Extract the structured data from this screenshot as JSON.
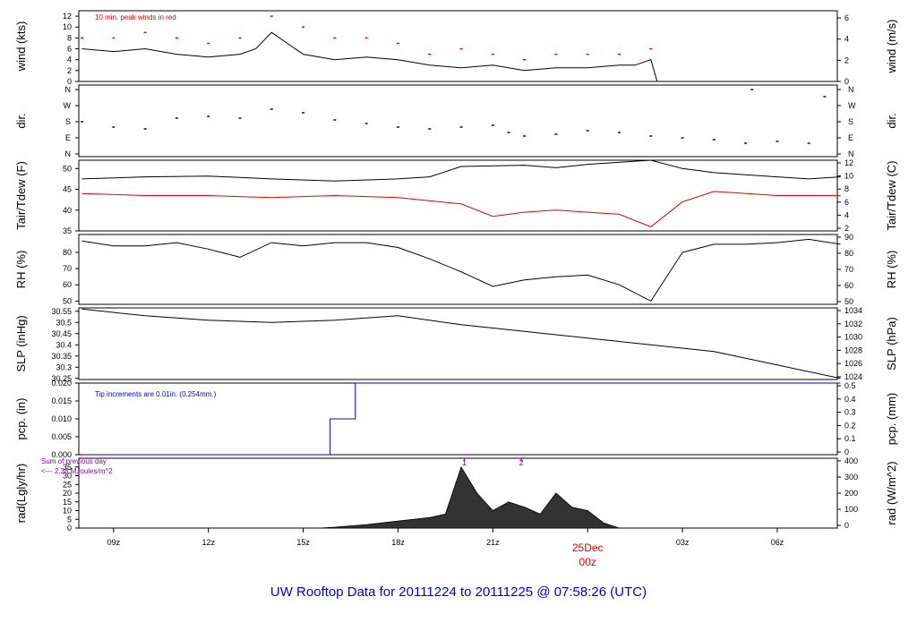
{
  "page_title": "UW Rooftop Data for 20111224  to  20111225 @ 07:58:26  (UTC)",
  "colors": {
    "text": "#000000",
    "peak": "#e00000",
    "tdew": "#e00000",
    "pcp": "#0000cc",
    "rad_note": "#8800aa",
    "title": "#0000cc",
    "date": "#e00000"
  },
  "time_axis": {
    "ticks": [
      "09z",
      "12z",
      "15z",
      "18z",
      "21z",
      "00z",
      "03z",
      "06z"
    ],
    "tick_hours": [
      9,
      12,
      15,
      18,
      21,
      24,
      27,
      30
    ],
    "range_hours": [
      7.9,
      31.9
    ],
    "date_label": "25Dec",
    "date_hour": 24
  },
  "chart_data": [
    {
      "type": "line",
      "name": "wind",
      "ylabel_left": "wind (kts)",
      "ylabel_right": "wind (m/s)",
      "ylim": [
        0,
        13
      ],
      "left_ticks": [
        0,
        2,
        4,
        6,
        8,
        10,
        12
      ],
      "right_ticks": [
        0,
        2,
        4,
        6
      ],
      "right_factor": 0.5144,
      "annotation": "10 min. peak winds in red",
      "series": [
        {
          "values": [
            [
              8,
              6
            ],
            [
              9,
              5.5
            ],
            [
              10,
              6
            ],
            [
              11,
              5
            ],
            [
              12,
              4.5
            ],
            [
              13,
              5
            ],
            [
              13.5,
              6
            ],
            [
              14,
              9
            ],
            [
              14.5,
              7
            ],
            [
              15,
              5
            ],
            [
              16,
              4
            ],
            [
              17,
              4.5
            ],
            [
              18,
              4
            ],
            [
              19,
              3
            ],
            [
              20,
              2.5
            ],
            [
              21,
              3
            ],
            [
              22,
              2
            ],
            [
              23,
              2.5
            ],
            [
              24,
              2.5
            ],
            [
              25,
              3
            ],
            [
              25.5,
              3
            ],
            [
              26,
              4
            ],
            [
              26.2,
              0
            ],
            [
              32,
              0
            ]
          ]
        },
        {
          "values": [
            [
              8,
              8
            ],
            [
              9,
              8
            ],
            [
              10,
              9
            ],
            [
              11,
              8
            ],
            [
              12,
              7
            ],
            [
              13,
              8
            ],
            [
              14,
              12
            ],
            [
              15,
              10
            ],
            [
              16,
              8
            ],
            [
              17,
              8
            ],
            [
              18,
              7
            ],
            [
              19,
              5
            ],
            [
              20,
              6
            ],
            [
              21,
              5
            ],
            [
              22,
              4
            ],
            [
              23,
              5
            ],
            [
              24,
              5
            ],
            [
              25,
              5
            ],
            [
              26,
              6
            ]
          ]
        }
      ]
    },
    {
      "type": "scatter",
      "name": "dir",
      "ylabel_left": "dir.",
      "ylabel_right": "dir.",
      "left_ticks": [
        "N",
        "E",
        "S",
        "W",
        "N"
      ],
      "right_ticks": [
        "N",
        "E",
        "S",
        "W",
        "N"
      ],
      "series": [
        {
          "values": [
            [
              8,
              180
            ],
            [
              9,
              150
            ],
            [
              10,
              140
            ],
            [
              11,
              200
            ],
            [
              12,
              210
            ],
            [
              13,
              200
            ],
            [
              14,
              250
            ],
            [
              15,
              230
            ],
            [
              16,
              190
            ],
            [
              17,
              170
            ],
            [
              18,
              150
            ],
            [
              19,
              140
            ],
            [
              20,
              150
            ],
            [
              21,
              160
            ],
            [
              21.5,
              120
            ],
            [
              22,
              100
            ],
            [
              23,
              110
            ],
            [
              24,
              130
            ],
            [
              25,
              120
            ],
            [
              26,
              100
            ],
            [
              27,
              90
            ],
            [
              28,
              80
            ],
            [
              29,
              60
            ],
            [
              29.2,
              370
            ],
            [
              30,
              70
            ],
            [
              31,
              60
            ],
            [
              31.5,
              320
            ]
          ]
        }
      ]
    },
    {
      "type": "line",
      "name": "temperature",
      "ylabel_left": "Tair/Tdew (F)",
      "ylabel_right": "Tair/Tdew (C)",
      "ylim": [
        35,
        52
      ],
      "left_ticks": [
        35,
        40,
        45,
        50
      ],
      "right_ticks": [
        2,
        4,
        6,
        8,
        10,
        12
      ],
      "series": [
        {
          "values": [
            [
              8,
              47.5
            ],
            [
              10,
              48
            ],
            [
              12,
              48.2
            ],
            [
              14,
              47.5
            ],
            [
              16,
              47
            ],
            [
              18,
              47.5
            ],
            [
              19,
              48
            ],
            [
              20,
              50.5
            ],
            [
              22,
              50.8
            ],
            [
              23,
              50.2
            ],
            [
              24,
              51
            ],
            [
              26,
              52
            ],
            [
              27,
              50
            ],
            [
              28,
              49
            ],
            [
              30,
              48
            ],
            [
              31,
              47.5
            ],
            [
              32,
              48
            ]
          ]
        },
        {
          "values": [
            [
              8,
              44
            ],
            [
              10,
              43.5
            ],
            [
              12,
              43.5
            ],
            [
              14,
              43
            ],
            [
              16,
              43.5
            ],
            [
              18,
              43
            ],
            [
              20,
              41.5
            ],
            [
              21,
              38.5
            ],
            [
              22,
              39.5
            ],
            [
              23,
              40
            ],
            [
              24,
              39.5
            ],
            [
              25,
              39
            ],
            [
              26,
              36
            ],
            [
              27,
              42
            ],
            [
              28,
              44.5
            ],
            [
              30,
              43.5
            ],
            [
              32,
              43.5
            ]
          ]
        }
      ]
    },
    {
      "type": "line",
      "name": "rh",
      "ylabel_left": "RH (%)",
      "ylabel_right": "RH (%)",
      "ylim": [
        48,
        91
      ],
      "left_ticks": [
        50,
        60,
        70,
        80
      ],
      "right_ticks": [
        50,
        60,
        70,
        80,
        90
      ],
      "series": [
        {
          "values": [
            [
              8,
              87
            ],
            [
              9,
              84
            ],
            [
              10,
              84
            ],
            [
              11,
              86
            ],
            [
              12,
              82
            ],
            [
              13,
              77
            ],
            [
              14,
              86
            ],
            [
              15,
              84
            ],
            [
              16,
              86
            ],
            [
              17,
              86
            ],
            [
              18,
              83
            ],
            [
              19,
              76
            ],
            [
              20,
              68
            ],
            [
              21,
              59
            ],
            [
              22,
              63
            ],
            [
              23,
              65
            ],
            [
              24,
              66
            ],
            [
              25,
              60
            ],
            [
              26,
              50
            ],
            [
              27,
              80
            ],
            [
              28,
              85
            ],
            [
              29,
              85
            ],
            [
              30,
              86
            ],
            [
              31,
              88
            ],
            [
              32,
              85
            ]
          ]
        }
      ]
    },
    {
      "type": "line",
      "name": "slp",
      "ylabel_left": "SLP (inHg)",
      "ylabel_right": "SLP (hPa)",
      "ylim": [
        30.245,
        30.565
      ],
      "left_ticks": [
        30.25,
        30.3,
        30.35,
        30.4,
        30.45,
        30.5,
        30.55
      ],
      "right_ticks": [
        1024,
        1026,
        1028,
        1030,
        1032,
        1034
      ],
      "series": [
        {
          "values": [
            [
              8,
              30.56
            ],
            [
              10,
              30.53
            ],
            [
              12,
              30.51
            ],
            [
              14,
              30.5
            ],
            [
              16,
              30.51
            ],
            [
              18,
              30.53
            ],
            [
              20,
              30.49
            ],
            [
              22,
              30.46
            ],
            [
              24,
              30.43
            ],
            [
              26,
              30.4
            ],
            [
              28,
              30.37
            ],
            [
              30,
              30.31
            ],
            [
              32,
              30.25
            ]
          ]
        }
      ]
    },
    {
      "type": "line",
      "name": "pcp",
      "ylabel_left": "pcp. (in)",
      "ylabel_right": "pcp. (mm)",
      "ylim": [
        0,
        0.02
      ],
      "left_ticks": [
        0,
        0.005,
        0.01,
        0.015,
        0.02
      ],
      "left_tick_labels": [
        "0.000",
        "0.005",
        "0.010",
        "0.015",
        "0.020"
      ],
      "right_ticks": [
        0,
        0.1,
        0.2,
        0.3,
        0.4,
        0.5
      ],
      "annotation": "Tip increments are 0.01in. (0.254mm.)",
      "series": [
        {
          "values": [
            [
              8,
              0
            ],
            [
              15.85,
              0
            ],
            [
              15.85,
              0.01
            ],
            [
              16.65,
              0.01
            ],
            [
              16.65,
              0.02
            ],
            [
              32,
              0.02
            ]
          ]
        }
      ]
    },
    {
      "type": "area",
      "name": "rad",
      "ylabel_left": "rad(Lgly/hr)",
      "ylabel_right": "rad (W/m^2)",
      "ylim": [
        0,
        40
      ],
      "left_ticks": [
        0,
        5,
        10,
        15,
        20,
        25,
        30,
        35
      ],
      "right_ticks": [
        0,
        100,
        200,
        300,
        400
      ],
      "annotation_lines": [
        "Sum of previous day",
        "<--- 2.38 MJoules/m^2"
      ],
      "markers": [
        {
          "x": 20.1,
          "label": "1"
        },
        {
          "x": 21.9,
          "label": "2"
        }
      ],
      "series": [
        {
          "values": [
            [
              15.5,
              0
            ],
            [
              16,
              0.5
            ],
            [
              17,
              2
            ],
            [
              18,
              4
            ],
            [
              19,
              6
            ],
            [
              19.5,
              8
            ],
            [
              20,
              35
            ],
            [
              20.5,
              20
            ],
            [
              21,
              10
            ],
            [
              21.5,
              15
            ],
            [
              22,
              12
            ],
            [
              22.5,
              8
            ],
            [
              23,
              20
            ],
            [
              23.5,
              12
            ],
            [
              24,
              10
            ],
            [
              24.5,
              3
            ],
            [
              25,
              0
            ]
          ]
        }
      ]
    }
  ]
}
